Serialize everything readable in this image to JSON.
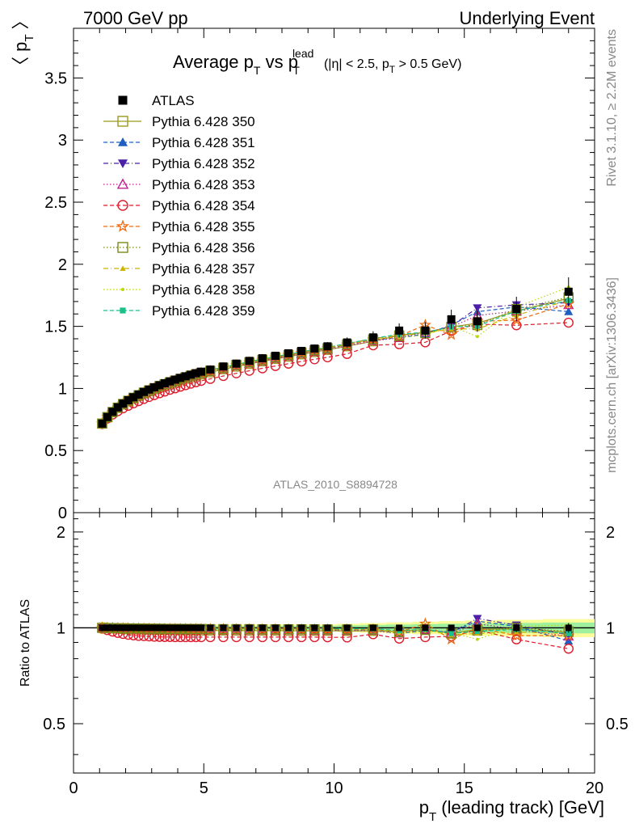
{
  "header": {
    "left": "7000 GeV pp",
    "right": "Underlying Event"
  },
  "side_labels": {
    "rivet": "Rivet 3.1.10, ≥ 2.2M events",
    "mcplots": "mcplots.cern.ch [arXiv:1306.3436]"
  },
  "chart_data": {
    "type": "scatter",
    "title_main": "Average p",
    "title_sub1": "T",
    "title_mid": " vs p",
    "title_sub2": "T",
    "title_sup": "lead",
    "title_cuts": "(|η| < 2.5, p",
    "title_cuts_sub": "T",
    "title_cuts_end": " > 0.5 GeV)",
    "ylabel": "〈 p",
    "ylabel_sub": "T",
    "ylabel_end": " 〉",
    "ratio_ylabel": "Ratio to ATLAS",
    "xlabel": "p",
    "xlabel_sub": "T",
    "xlabel_end": " (leading track) [GeV]",
    "watermark": "ATLAS_2010_S8894728",
    "xlim": [
      0,
      20
    ],
    "ylim": [
      0,
      3.9
    ],
    "ratio_ylim": [
      0.35,
      2.3
    ],
    "x_ticks": [
      "0",
      "5",
      "10",
      "15",
      "20"
    ],
    "y_ticks": [
      "0",
      "0.5",
      "1",
      "1.5",
      "2",
      "2.5",
      "3",
      "3.5"
    ],
    "ratio_ticks": [
      "0.5",
      "1",
      "2"
    ],
    "x": [
      1.1,
      1.3,
      1.5,
      1.7,
      1.9,
      2.1,
      2.3,
      2.5,
      2.7,
      2.9,
      3.1,
      3.3,
      3.5,
      3.7,
      3.9,
      4.1,
      4.3,
      4.5,
      4.7,
      4.9,
      5.25,
      5.75,
      6.25,
      6.75,
      7.25,
      7.75,
      8.25,
      8.75,
      9.25,
      9.75,
      10.5,
      11.5,
      12.5,
      13.5,
      14.5,
      15.5,
      17.0,
      19.0
    ],
    "series": [
      {
        "name": "ATLAS",
        "color": "#000000",
        "marker": "square-filled",
        "line": "none",
        "values": [
          0.717,
          0.77,
          0.812,
          0.848,
          0.878,
          0.905,
          0.929,
          0.951,
          0.972,
          0.991,
          1.009,
          1.026,
          1.042,
          1.057,
          1.071,
          1.085,
          1.098,
          1.111,
          1.123,
          1.135,
          1.152,
          1.177,
          1.2,
          1.222,
          1.243,
          1.263,
          1.283,
          1.302,
          1.321,
          1.339,
          1.37,
          1.411,
          1.466,
          1.467,
          1.557,
          1.541,
          1.64,
          1.779
        ]
      },
      {
        "name": "Pythia 6.428 350",
        "color": "#9a9a1e",
        "marker": "square-open",
        "line": "solid",
        "ratio": [
          1.0,
          0.998,
          0.996,
          0.994,
          0.992,
          0.99,
          0.989,
          0.988,
          0.987,
          0.986,
          0.985,
          0.985,
          0.984,
          0.984,
          0.983,
          0.983,
          0.982,
          0.982,
          0.982,
          0.981,
          0.981,
          0.981,
          0.98,
          0.98,
          0.98,
          0.98,
          0.979,
          0.979,
          0.979,
          0.979,
          0.978,
          0.978,
          0.974,
          0.99,
          0.96,
          0.99,
          0.99,
          0.97
        ]
      },
      {
        "name": "Pythia 6.428 351",
        "color": "#1f5fbf",
        "marker": "triangle-up-filled",
        "line": "dashed",
        "ratio": [
          1.0,
          0.999,
          0.998,
          0.997,
          0.996,
          0.995,
          0.994,
          0.993,
          0.993,
          0.992,
          0.992,
          0.991,
          0.991,
          0.99,
          0.99,
          0.99,
          0.989,
          0.989,
          0.989,
          0.989,
          0.988,
          0.988,
          0.988,
          0.988,
          0.987,
          0.987,
          0.987,
          0.987,
          0.987,
          0.986,
          0.986,
          0.986,
          0.96,
          0.98,
          0.97,
          1.05,
          1.01,
          0.91
        ]
      },
      {
        "name": "Pythia 6.428 352",
        "color": "#4b1fa8",
        "marker": "triangle-down-filled",
        "line": "dashdot",
        "ratio": [
          1.0,
          1.0,
          1.0,
          0.999,
          0.999,
          0.999,
          0.998,
          0.998,
          0.998,
          0.998,
          0.997,
          0.997,
          0.997,
          0.997,
          0.997,
          0.996,
          0.996,
          0.996,
          0.996,
          0.996,
          0.995,
          0.995,
          0.995,
          0.995,
          0.995,
          0.994,
          0.994,
          0.994,
          0.994,
          0.994,
          0.993,
          0.993,
          0.975,
          0.985,
          0.965,
          1.07,
          1.02,
          0.95
        ]
      },
      {
        "name": "Pythia 6.428 353",
        "color": "#c0208a",
        "marker": "triangle-up-open",
        "line": "dotted",
        "ratio": [
          1.0,
          0.998,
          0.996,
          0.994,
          0.993,
          0.992,
          0.991,
          0.99,
          0.989,
          0.988,
          0.988,
          0.987,
          0.987,
          0.986,
          0.986,
          0.985,
          0.985,
          0.985,
          0.984,
          0.984,
          0.984,
          0.983,
          0.983,
          0.983,
          0.982,
          0.982,
          0.982,
          0.982,
          0.981,
          0.981,
          0.98,
          0.98,
          0.96,
          0.99,
          0.96,
          1.03,
          0.99,
          0.94
        ]
      },
      {
        "name": "Pythia 6.428 354",
        "color": "#dd1c2c",
        "marker": "circle-open",
        "line": "dashed",
        "ratio": [
          0.995,
          0.984,
          0.973,
          0.964,
          0.957,
          0.951,
          0.947,
          0.944,
          0.942,
          0.94,
          0.938,
          0.937,
          0.936,
          0.936,
          0.935,
          0.935,
          0.935,
          0.935,
          0.935,
          0.935,
          0.935,
          0.935,
          0.935,
          0.935,
          0.935,
          0.935,
          0.935,
          0.935,
          0.935,
          0.934,
          0.933,
          0.955,
          0.925,
          0.935,
          0.94,
          0.985,
          0.92,
          0.86
        ]
      },
      {
        "name": "Pythia 6.428 355",
        "color": "#ee6a10",
        "marker": "star-open",
        "line": "dashed",
        "ratio": [
          1.0,
          0.999,
          0.998,
          0.997,
          0.996,
          0.995,
          0.995,
          0.994,
          0.994,
          0.993,
          0.993,
          0.992,
          0.992,
          0.992,
          0.991,
          0.991,
          0.991,
          0.991,
          0.99,
          0.99,
          0.99,
          0.99,
          0.989,
          0.989,
          0.989,
          0.989,
          0.988,
          0.988,
          0.988,
          0.988,
          0.987,
          0.987,
          0.97,
          1.03,
          0.92,
          1.0,
          0.945,
          0.945
        ]
      },
      {
        "name": "Pythia 6.428 356",
        "color": "#7a8a1a",
        "marker": "square-open",
        "line": "dotted",
        "ratio": [
          1.0,
          0.999,
          0.998,
          0.997,
          0.997,
          0.996,
          0.996,
          0.995,
          0.995,
          0.994,
          0.994,
          0.994,
          0.993,
          0.993,
          0.993,
          0.993,
          0.992,
          0.992,
          0.992,
          0.992,
          0.991,
          0.991,
          0.991,
          0.991,
          0.99,
          0.99,
          0.99,
          0.99,
          0.99,
          0.989,
          0.989,
          0.989,
          0.97,
          0.985,
          0.96,
          0.98,
          1.0,
          0.975
        ]
      },
      {
        "name": "Pythia 6.428 357",
        "color": "#ccb400",
        "marker": "triangle-up-small",
        "line": "dashdot",
        "ratio": [
          1.0,
          0.999,
          0.999,
          0.998,
          0.998,
          0.997,
          0.997,
          0.996,
          0.996,
          0.996,
          0.995,
          0.995,
          0.995,
          0.995,
          0.994,
          0.994,
          0.994,
          0.994,
          0.994,
          0.993,
          0.993,
          0.993,
          0.993,
          0.993,
          0.992,
          0.992,
          0.992,
          0.992,
          0.992,
          0.992,
          0.991,
          0.991,
          0.975,
          0.985,
          0.95,
          0.96,
          0.97,
          0.96
        ]
      },
      {
        "name": "Pythia 6.428 358",
        "color": "#bcd70a",
        "marker": "dot",
        "line": "dotted",
        "ratio": [
          1.0,
          1.0,
          0.999,
          0.999,
          0.998,
          0.998,
          0.998,
          0.997,
          0.997,
          0.997,
          0.997,
          0.996,
          0.996,
          0.996,
          0.996,
          0.996,
          0.995,
          0.995,
          0.995,
          0.995,
          0.995,
          0.994,
          0.994,
          0.994,
          0.994,
          0.994,
          0.993,
          0.993,
          0.993,
          0.993,
          0.993,
          0.993,
          0.96,
          0.975,
          0.965,
          0.92,
          1.01,
          1.02
        ]
      },
      {
        "name": "Pythia 6.428 359",
        "color": "#18c08a",
        "marker": "square-filled-small",
        "line": "dashed",
        "ratio": [
          1.0,
          1.0,
          0.999,
          0.999,
          0.999,
          0.998,
          0.998,
          0.998,
          0.998,
          0.997,
          0.997,
          0.997,
          0.997,
          0.997,
          0.996,
          0.996,
          0.996,
          0.996,
          0.996,
          0.996,
          0.995,
          0.995,
          0.995,
          0.995,
          0.995,
          0.995,
          0.994,
          0.994,
          0.994,
          0.994,
          0.994,
          0.994,
          0.98,
          0.99,
          0.96,
          0.975,
          0.99,
          0.96
        ]
      }
    ],
    "atlas_ratio_band": [
      0.045,
      0.035,
      0.03,
      0.028,
      0.027,
      0.026,
      0.025,
      0.025,
      0.025,
      0.025,
      0.025,
      0.025,
      0.025,
      0.025,
      0.025,
      0.025,
      0.025,
      0.025,
      0.025,
      0.025,
      0.025,
      0.025,
      0.025,
      0.025,
      0.025,
      0.025,
      0.025,
      0.025,
      0.025,
      0.025,
      0.03,
      0.035,
      0.04,
      0.045,
      0.05,
      0.055,
      0.06,
      0.065
    ],
    "atlas_stat_band": [
      0.01,
      0.008,
      0.008,
      0.008,
      0.008,
      0.008,
      0.008,
      0.008,
      0.008,
      0.008,
      0.008,
      0.008,
      0.008,
      0.008,
      0.008,
      0.008,
      0.008,
      0.008,
      0.008,
      0.008,
      0.008,
      0.008,
      0.008,
      0.008,
      0.008,
      0.008,
      0.008,
      0.008,
      0.008,
      0.008,
      0.01,
      0.012,
      0.015,
      0.018,
      0.02,
      0.025,
      0.03,
      0.035
    ],
    "legend_position": "top-left"
  }
}
